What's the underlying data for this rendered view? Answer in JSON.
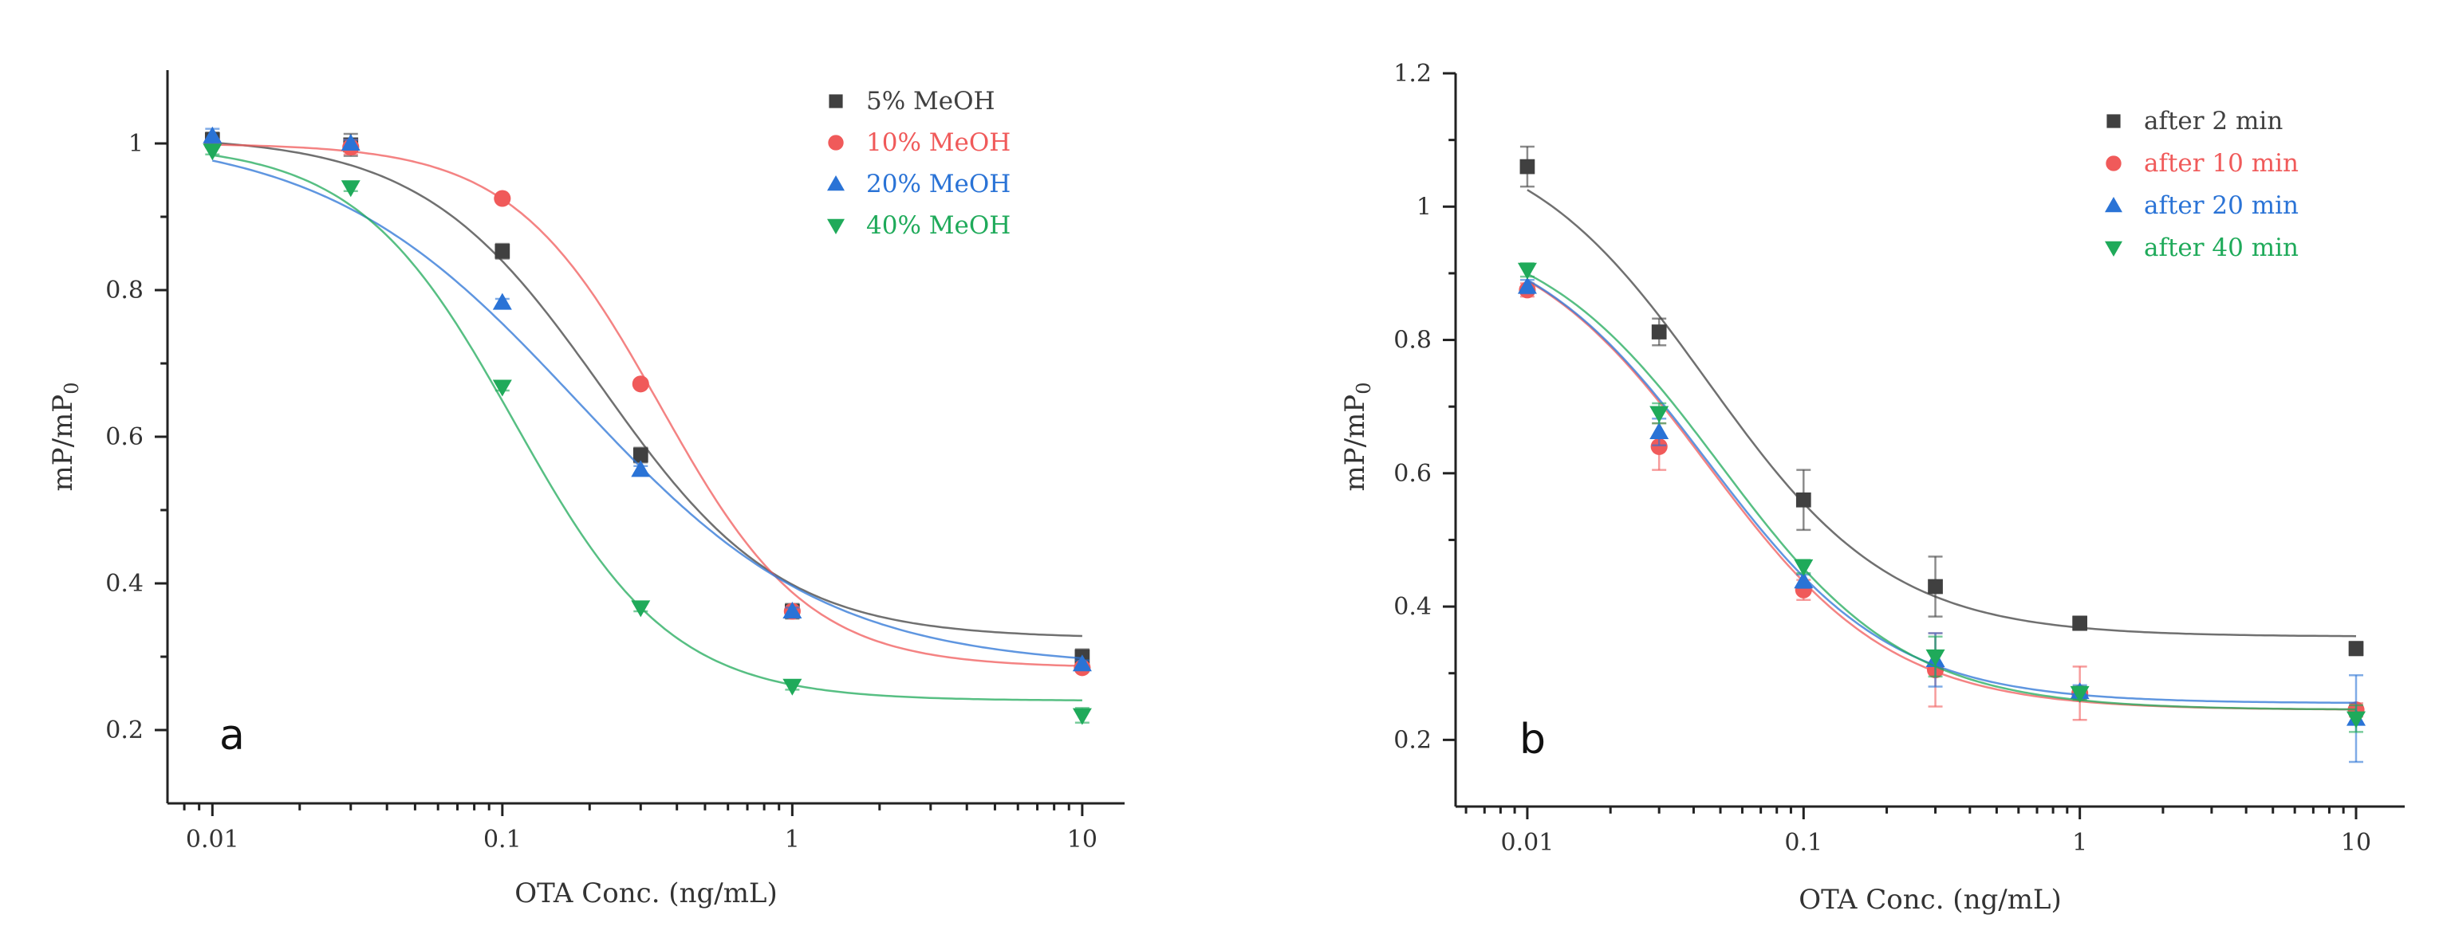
{
  "chart_data": [
    {
      "type": "scatter",
      "panel_label": "a",
      "title": "",
      "xlabel": "OTA Conc. (ng/mL)",
      "ylabel": "mP/mP",
      "ylabel_subscript": "0",
      "x_scale": "log",
      "xlim": [
        0.007,
        14
      ],
      "ylim": [
        0.1,
        1.1
      ],
      "x_ticks": [
        0.01,
        0.1,
        1,
        10
      ],
      "x_tick_labels": [
        "0.01",
        "0.1",
        "1",
        "10"
      ],
      "y_ticks": [
        0.2,
        0.4,
        0.6,
        0.8,
        1.0
      ],
      "y_tick_labels": [
        "0.2",
        "0.4",
        "0.6",
        "0.8",
        "1"
      ],
      "grid": false,
      "legend_position": "top-right",
      "x": [
        0.01,
        0.03,
        0.1,
        0.3,
        1,
        10
      ],
      "series": [
        {
          "name": "5% MeOH",
          "color": "#404040",
          "marker": "square",
          "values": [
            1.005,
            0.998,
            0.853,
            0.575,
            0.362,
            0.3
          ],
          "errors": [
            0.01,
            0.015,
            0.01,
            0.01,
            0.01,
            0.01
          ],
          "fit": {
            "top": 1.01,
            "bottom": 0.325,
            "ec50": 0.22,
            "hill": 1.4
          }
        },
        {
          "name": "10% MeOH",
          "color": "#f05a5a",
          "marker": "circle",
          "values": [
            1.0,
            0.995,
            0.925,
            0.672,
            0.362,
            0.285
          ],
          "errors": [
            0.005,
            0.01,
            0.005,
            0.005,
            0.005,
            0.005
          ],
          "fit": {
            "top": 1.0,
            "bottom": 0.285,
            "ec50": 0.35,
            "hill": 1.7
          }
        },
        {
          "name": "20% MeOH",
          "color": "#2a73d6",
          "marker": "triangle-up",
          "values": [
            1.01,
            1.0,
            0.783,
            0.555,
            0.362,
            0.29
          ],
          "errors": [
            0.01,
            0.005,
            0.005,
            0.005,
            0.005,
            0.005
          ],
          "fit": {
            "top": 1.015,
            "bottom": 0.285,
            "ec50": 0.18,
            "hill": 1.0
          }
        },
        {
          "name": "40% MeOH",
          "color": "#1faa5a",
          "marker": "triangle-down",
          "values": [
            0.99,
            0.94,
            0.668,
            0.367,
            0.26,
            0.22
          ],
          "errors": [
            0.005,
            0.005,
            0.005,
            0.005,
            0.005,
            0.01
          ],
          "fit": {
            "top": 1.0,
            "bottom": 0.24,
            "ec50": 0.11,
            "hill": 1.6
          }
        }
      ]
    },
    {
      "type": "scatter",
      "panel_label": "b",
      "title": "",
      "xlabel": "OTA Conc. (ng/mL)",
      "ylabel": "mP/mP",
      "ylabel_subscript": "0",
      "x_scale": "log",
      "xlim": [
        0.0055,
        15
      ],
      "ylim": [
        0.1,
        1.2
      ],
      "x_ticks": [
        0.01,
        0.1,
        1,
        10
      ],
      "x_tick_labels": [
        "0.01",
        "0.1",
        "1",
        "10"
      ],
      "y_ticks": [
        0.2,
        0.4,
        0.6,
        0.8,
        1.0,
        1.2
      ],
      "y_tick_labels": [
        "0.2",
        "0.4",
        "0.6",
        "0.8",
        "1",
        "1.2"
      ],
      "grid": false,
      "legend_position": "top-right",
      "x": [
        0.01,
        0.03,
        0.1,
        0.3,
        1,
        10
      ],
      "series": [
        {
          "name": "after 2 min",
          "color": "#404040",
          "marker": "square",
          "values": [
            1.06,
            0.812,
            0.56,
            0.43,
            0.375,
            0.337
          ],
          "errors": [
            0.03,
            0.02,
            0.045,
            0.045,
            0.01,
            0.01
          ],
          "fit": {
            "top": 1.12,
            "bottom": 0.355,
            "ec50": 0.045,
            "hill": 1.3
          }
        },
        {
          "name": "after 10 min",
          "color": "#f05a5a",
          "marker": "circle",
          "values": [
            0.875,
            0.64,
            0.425,
            0.305,
            0.27,
            0.245
          ],
          "errors": [
            0.01,
            0.035,
            0.015,
            0.055,
            0.04,
            0.01
          ],
          "fit": {
            "top": 0.98,
            "bottom": 0.245,
            "ec50": 0.045,
            "hill": 1.3
          }
        },
        {
          "name": "after 20 min",
          "color": "#2a73d6",
          "marker": "triangle-up",
          "values": [
            0.88,
            0.662,
            0.438,
            0.32,
            0.272,
            0.232
          ],
          "errors": [
            0.01,
            0.02,
            0.01,
            0.04,
            0.01,
            0.065
          ],
          "fit": {
            "top": 0.98,
            "bottom": 0.255,
            "ec50": 0.045,
            "hill": 1.3
          }
        },
        {
          "name": "after 40 min",
          "color": "#1faa5a",
          "marker": "triangle-down",
          "values": [
            0.905,
            0.69,
            0.46,
            0.325,
            0.27,
            0.232
          ],
          "errors": [
            0.01,
            0.015,
            0.01,
            0.03,
            0.01,
            0.02
          ],
          "fit": {
            "top": 0.98,
            "bottom": 0.245,
            "ec50": 0.05,
            "hill": 1.3
          }
        }
      ]
    }
  ]
}
